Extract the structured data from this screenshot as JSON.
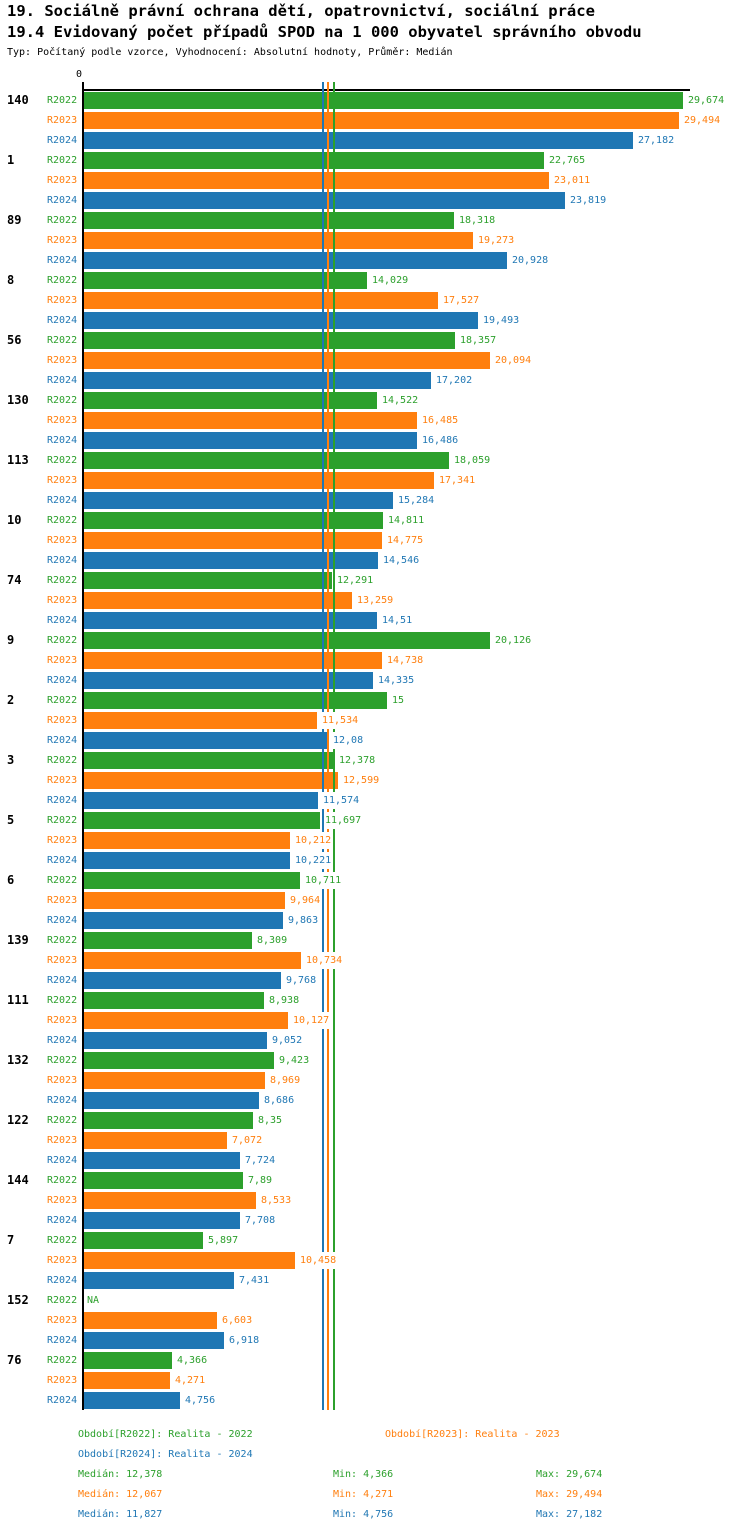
{
  "title": "19. Sociálně právní ochrana dětí, opatrovnictví, sociální práce",
  "subtitle": "19.4 Evidovaný počet případů SPOD na 1 000 obyvatel správního obvodu",
  "meta": "Typ: Počítaný podle vzorce, Vyhodnocení: Absolutní hodnoty, Průměr: Medián",
  "axis": {
    "origin_label": "0"
  },
  "colors": {
    "R2022": "#2ca02c",
    "R2023": "#ff7f0e",
    "R2024": "#1f77b4",
    "axis": "#000000"
  },
  "chart_data": {
    "type": "bar",
    "orientation": "horizontal",
    "series": [
      "R2022",
      "R2023",
      "R2024"
    ],
    "xlim": [
      0,
      30
    ],
    "grid": false,
    "legend_position": "bottom",
    "medians": {
      "R2022": 12.378,
      "R2023": 12.067,
      "R2024": 11.827
    },
    "groups": [
      {
        "category": "140",
        "bars": [
          {
            "series": "R2022",
            "value": 29.674,
            "label": "29,674"
          },
          {
            "series": "R2023",
            "value": 29.494,
            "label": "29,494"
          },
          {
            "series": "R2024",
            "value": 27.182,
            "label": "27,182"
          }
        ]
      },
      {
        "category": "1",
        "bars": [
          {
            "series": "R2022",
            "value": 22.765,
            "label": "22,765"
          },
          {
            "series": "R2023",
            "value": 23.011,
            "label": "23,011"
          },
          {
            "series": "R2024",
            "value": 23.819,
            "label": "23,819"
          }
        ]
      },
      {
        "category": "89",
        "bars": [
          {
            "series": "R2022",
            "value": 18.318,
            "label": "18,318"
          },
          {
            "series": "R2023",
            "value": 19.273,
            "label": "19,273"
          },
          {
            "series": "R2024",
            "value": 20.928,
            "label": "20,928"
          }
        ]
      },
      {
        "category": "8",
        "bars": [
          {
            "series": "R2022",
            "value": 14.029,
            "label": "14,029"
          },
          {
            "series": "R2023",
            "value": 17.527,
            "label": "17,527"
          },
          {
            "series": "R2024",
            "value": 19.493,
            "label": "19,493"
          }
        ]
      },
      {
        "category": "56",
        "bars": [
          {
            "series": "R2022",
            "value": 18.357,
            "label": "18,357"
          },
          {
            "series": "R2023",
            "value": 20.094,
            "label": "20,094"
          },
          {
            "series": "R2024",
            "value": 17.202,
            "label": "17,202"
          }
        ]
      },
      {
        "category": "130",
        "bars": [
          {
            "series": "R2022",
            "value": 14.522,
            "label": "14,522"
          },
          {
            "series": "R2023",
            "value": 16.485,
            "label": "16,485"
          },
          {
            "series": "R2024",
            "value": 16.486,
            "label": "16,486"
          }
        ]
      },
      {
        "category": "113",
        "bars": [
          {
            "series": "R2022",
            "value": 18.059,
            "label": "18,059"
          },
          {
            "series": "R2023",
            "value": 17.341,
            "label": "17,341"
          },
          {
            "series": "R2024",
            "value": 15.284,
            "label": "15,284"
          }
        ]
      },
      {
        "category": "10",
        "bars": [
          {
            "series": "R2022",
            "value": 14.811,
            "label": "14,811"
          },
          {
            "series": "R2023",
            "value": 14.775,
            "label": "14,775"
          },
          {
            "series": "R2024",
            "value": 14.546,
            "label": "14,546"
          }
        ]
      },
      {
        "category": "74",
        "bars": [
          {
            "series": "R2022",
            "value": 12.291,
            "label": "12,291"
          },
          {
            "series": "R2023",
            "value": 13.259,
            "label": "13,259"
          },
          {
            "series": "R2024",
            "value": 14.51,
            "label": "14,51"
          }
        ]
      },
      {
        "category": "9",
        "bars": [
          {
            "series": "R2022",
            "value": 20.126,
            "label": "20,126"
          },
          {
            "series": "R2023",
            "value": 14.738,
            "label": "14,738"
          },
          {
            "series": "R2024",
            "value": 14.335,
            "label": "14,335"
          }
        ]
      },
      {
        "category": "2",
        "bars": [
          {
            "series": "R2022",
            "value": 15,
            "label": "15"
          },
          {
            "series": "R2023",
            "value": 11.534,
            "label": "11,534"
          },
          {
            "series": "R2024",
            "value": 12.08,
            "label": "12,08"
          }
        ]
      },
      {
        "category": "3",
        "bars": [
          {
            "series": "R2022",
            "value": 12.378,
            "label": "12,378"
          },
          {
            "series": "R2023",
            "value": 12.599,
            "label": "12,599"
          },
          {
            "series": "R2024",
            "value": 11.574,
            "label": "11,574"
          }
        ]
      },
      {
        "category": "5",
        "bars": [
          {
            "series": "R2022",
            "value": 11.697,
            "label": "11,697"
          },
          {
            "series": "R2023",
            "value": 10.212,
            "label": "10,212"
          },
          {
            "series": "R2024",
            "value": 10.221,
            "label": "10,221"
          }
        ]
      },
      {
        "category": "6",
        "bars": [
          {
            "series": "R2022",
            "value": 10.711,
            "label": "10,711"
          },
          {
            "series": "R2023",
            "value": 9.964,
            "label": "9,964"
          },
          {
            "series": "R2024",
            "value": 9.863,
            "label": "9,863"
          }
        ]
      },
      {
        "category": "139",
        "bars": [
          {
            "series": "R2022",
            "value": 8.309,
            "label": "8,309"
          },
          {
            "series": "R2023",
            "value": 10.734,
            "label": "10,734"
          },
          {
            "series": "R2024",
            "value": 9.768,
            "label": "9,768"
          }
        ]
      },
      {
        "category": "111",
        "bars": [
          {
            "series": "R2022",
            "value": 8.938,
            "label": "8,938"
          },
          {
            "series": "R2023",
            "value": 10.127,
            "label": "10,127"
          },
          {
            "series": "R2024",
            "value": 9.052,
            "label": "9,052"
          }
        ]
      },
      {
        "category": "132",
        "bars": [
          {
            "series": "R2022",
            "value": 9.423,
            "label": "9,423"
          },
          {
            "series": "R2023",
            "value": 8.969,
            "label": "8,969"
          },
          {
            "series": "R2024",
            "value": 8.686,
            "label": "8,686"
          }
        ]
      },
      {
        "category": "122",
        "bars": [
          {
            "series": "R2022",
            "value": 8.35,
            "label": "8,35"
          },
          {
            "series": "R2023",
            "value": 7.072,
            "label": "7,072"
          },
          {
            "series": "R2024",
            "value": 7.724,
            "label": "7,724"
          }
        ]
      },
      {
        "category": "144",
        "bars": [
          {
            "series": "R2022",
            "value": 7.89,
            "label": "7,89"
          },
          {
            "series": "R2023",
            "value": 8.533,
            "label": "8,533"
          },
          {
            "series": "R2024",
            "value": 7.708,
            "label": "7,708"
          }
        ]
      },
      {
        "category": "7",
        "bars": [
          {
            "series": "R2022",
            "value": 5.897,
            "label": "5,897"
          },
          {
            "series": "R2023",
            "value": 10.458,
            "label": "10,458"
          },
          {
            "series": "R2024",
            "value": 7.431,
            "label": "7,431"
          }
        ]
      },
      {
        "category": "152",
        "bars": [
          {
            "series": "R2022",
            "value": null,
            "label": "NA"
          },
          {
            "series": "R2023",
            "value": 6.603,
            "label": "6,603"
          },
          {
            "series": "R2024",
            "value": 6.918,
            "label": "6,918"
          }
        ]
      },
      {
        "category": "76",
        "bars": [
          {
            "series": "R2022",
            "value": 4.366,
            "label": "4,366"
          },
          {
            "series": "R2023",
            "value": 4.271,
            "label": "4,271"
          },
          {
            "series": "R2024",
            "value": 4.756,
            "label": "4,756"
          }
        ]
      }
    ]
  },
  "footer": {
    "legend": [
      {
        "series": "R2022",
        "label": "Období[R2022]: Realita - 2022"
      },
      {
        "series": "R2023",
        "label": "Období[R2023]: Realita - 2023"
      },
      {
        "series": "R2024",
        "label": "Období[R2024]: Realita - 2024"
      }
    ],
    "stats": [
      {
        "series": "R2022",
        "median": "Medián: 12,378",
        "min": "Min: 4,366",
        "max": "Max: 29,674"
      },
      {
        "series": "R2023",
        "median": "Medián: 12,067",
        "min": "Min: 4,271",
        "max": "Max: 29,494"
      },
      {
        "series": "R2024",
        "median": "Medián: 11,827",
        "min": "Min: 4,756",
        "max": "Max: 27,182"
      }
    ]
  }
}
